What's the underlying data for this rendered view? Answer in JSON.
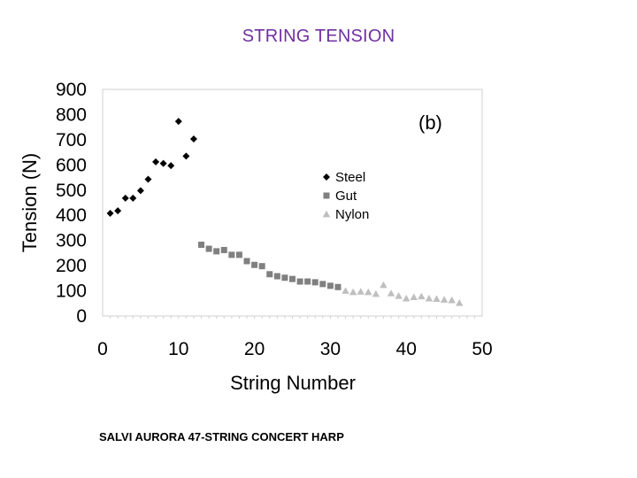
{
  "page": {
    "title": "STRING TENSION",
    "caption": "SALVI AURORA 47-STRING CONCERT HARP",
    "title_color": "#7030a0"
  },
  "chart_data": {
    "type": "scatter",
    "panel_label": "(b)",
    "xlabel": "String Number",
    "ylabel": "Tension (N)",
    "xlim": [
      0,
      50
    ],
    "ylim": [
      0,
      900
    ],
    "x_ticks": [
      "0",
      "10",
      "20",
      "30",
      "40",
      "50"
    ],
    "y_ticks": [
      "0",
      "100",
      "200",
      "300",
      "400",
      "500",
      "600",
      "700",
      "800",
      "900"
    ],
    "grid": false,
    "legend_placement": "center-right",
    "series": [
      {
        "name": "Steel",
        "marker": "diamond",
        "color": "#000000",
        "x": [
          1,
          2,
          3,
          4,
          5,
          6,
          7,
          8,
          9,
          10,
          11,
          12
        ],
        "y": [
          408,
          418,
          468,
          468,
          498,
          543,
          612,
          606,
          597,
          773,
          635,
          703
        ]
      },
      {
        "name": "Gut",
        "marker": "square",
        "color": "#808080",
        "x": [
          13,
          14,
          15,
          16,
          17,
          18,
          19,
          20,
          21,
          22,
          23,
          24,
          25,
          26,
          27,
          28,
          29,
          30,
          31
        ],
        "y": [
          283,
          267,
          257,
          262,
          243,
          243,
          218,
          203,
          198,
          166,
          158,
          152,
          147,
          137,
          137,
          134,
          127,
          120,
          115
        ]
      },
      {
        "name": "Nylon",
        "marker": "triangle",
        "color": "#bfbfbf",
        "x": [
          32,
          33,
          34,
          35,
          36,
          37,
          38,
          39,
          40,
          41,
          42,
          43,
          44,
          45,
          46,
          47
        ],
        "y": [
          100,
          95,
          97,
          95,
          88,
          123,
          90,
          80,
          70,
          75,
          78,
          70,
          68,
          65,
          63,
          52
        ]
      }
    ]
  }
}
